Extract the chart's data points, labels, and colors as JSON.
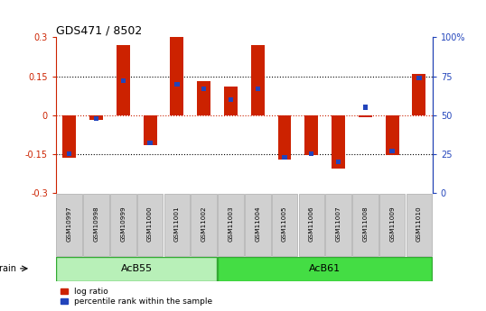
{
  "title": "GDS471 / 8502",
  "samples": [
    "GSM10997",
    "GSM10998",
    "GSM10999",
    "GSM11000",
    "GSM11001",
    "GSM11002",
    "GSM11003",
    "GSM11004",
    "GSM11005",
    "GSM11006",
    "GSM11007",
    "GSM11008",
    "GSM11009",
    "GSM11010"
  ],
  "log_ratio": [
    -0.163,
    -0.02,
    0.27,
    -0.115,
    0.305,
    0.13,
    0.11,
    0.27,
    -0.173,
    -0.153,
    -0.205,
    -0.008,
    -0.153,
    0.16
  ],
  "percentile": [
    25,
    48,
    72,
    32,
    70,
    67,
    60,
    67,
    23,
    25,
    20,
    55,
    27,
    74
  ],
  "groups": [
    {
      "label": "AcB55",
      "start": 0,
      "end": 5,
      "color": "#b8f0b8"
    },
    {
      "label": "AcB61",
      "start": 6,
      "end": 13,
      "color": "#44dd44"
    }
  ],
  "ylim": [
    -0.3,
    0.3
  ],
  "yticks": [
    -0.3,
    -0.15,
    0.0,
    0.15,
    0.3
  ],
  "y2ticks": [
    0,
    25,
    50,
    75,
    100
  ],
  "hlines": [
    -0.15,
    0.0,
    0.15
  ],
  "red_color": "#cc2200",
  "blue_color": "#2244bb",
  "bar_width": 0.5,
  "blue_bar_width": 0.18,
  "background_color": "#ffffff",
  "dotted_line_color": "#000000",
  "zero_line_color": "#cc2200",
  "figsize": [
    5.38,
    3.45
  ],
  "dpi": 100
}
